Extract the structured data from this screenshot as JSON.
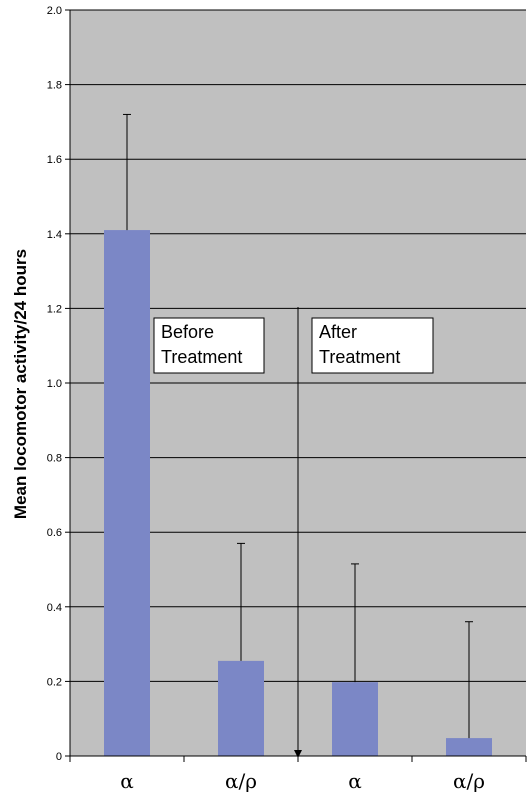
{
  "chart_data": {
    "type": "bar",
    "title": "",
    "xlabel": "",
    "ylabel": "Mean locomotor activity/24 hours",
    "ylim": [
      0,
      2.0
    ],
    "yticks": [
      0,
      0.2,
      0.4,
      0.6,
      0.8,
      1.0,
      1.2,
      1.4,
      1.6,
      1.8,
      2.0
    ],
    "ytick_labels": [
      "0",
      "0.2",
      "0.4",
      "0.6",
      "0.8",
      "1.0",
      "1.2",
      "1.4",
      "1.6",
      "1.8",
      "2.0"
    ],
    "categories": [
      "α",
      "α/ρ",
      "α",
      "α/ρ"
    ],
    "values": [
      1.41,
      0.255,
      0.198,
      0.048
    ],
    "error_upper": [
      1.72,
      0.57,
      0.515,
      0.36
    ],
    "grid": true,
    "colors": {
      "bar": "#7b87c6",
      "plot_bg": "#c0c0c0",
      "grid": "#000000"
    },
    "annotations": [
      {
        "line1": "Before",
        "line2": "Treatment"
      },
      {
        "line1": "After",
        "line2": "Treatment"
      }
    ]
  }
}
